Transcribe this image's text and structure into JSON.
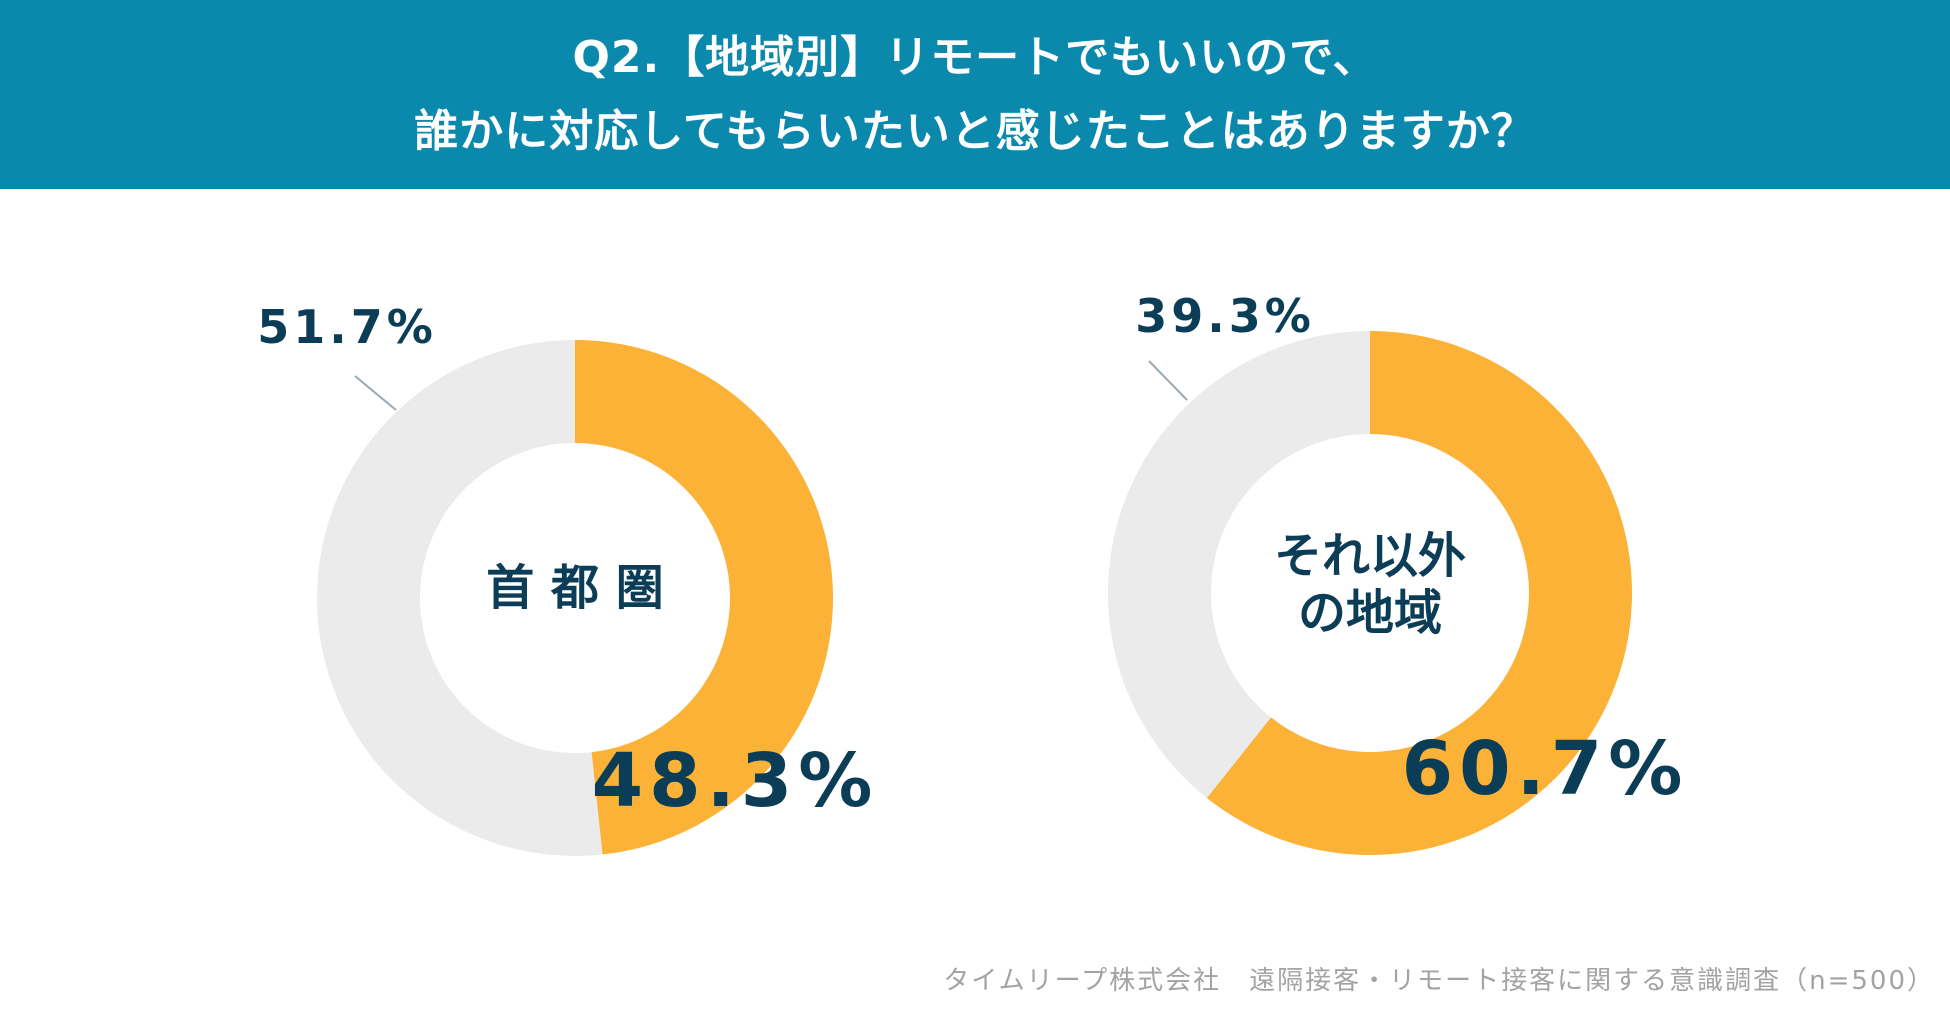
{
  "header": {
    "line1": "Q2.【地域別】リモートでもいいので、",
    "line2": "誰かに対応してもらいたいと感じたことはありますか？"
  },
  "chart_data": [
    {
      "type": "pie",
      "center_label": [
        "首 都 圏"
      ],
      "slices": [
        {
          "label": "48.3%",
          "value": 48.3,
          "color": "#fbb237"
        },
        {
          "label": "51.7%",
          "value": 51.7,
          "color": "#ebebeb"
        }
      ]
    },
    {
      "type": "pie",
      "center_label": [
        "それ以外",
        "の地域"
      ],
      "slices": [
        {
          "label": "60.7%",
          "value": 60.7,
          "color": "#fbb237"
        },
        {
          "label": "39.3%",
          "value": 39.3,
          "color": "#ebebeb"
        }
      ]
    }
  ],
  "colors": {
    "header_bg": "#0a89ad",
    "accent": "#fbb237",
    "remainder": "#ebebeb",
    "text_dark": "#0c3d57"
  },
  "footer": {
    "source": "タイムリープ株式会社　遠隔接客・リモート接客に関する意識調査（n=500）"
  }
}
